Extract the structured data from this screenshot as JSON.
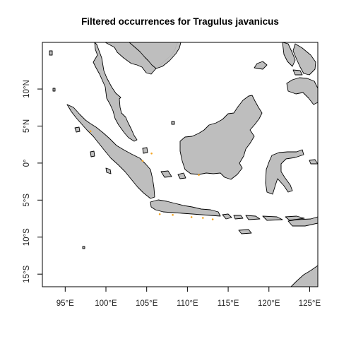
{
  "title": "Filtered occurrences for Tragulus javanicus",
  "map": {
    "lon_range": [
      92.2,
      126.0
    ],
    "lat_range": [
      -16.7,
      16.3
    ],
    "land_color": "#bebebe",
    "border_color": "#000000",
    "point_color": "#f5a623"
  },
  "x_ticks": [
    {
      "value": 95,
      "label": "95°E"
    },
    {
      "value": 100,
      "label": "100°E"
    },
    {
      "value": 105,
      "label": "105°E"
    },
    {
      "value": 110,
      "label": "110°E"
    },
    {
      "value": 115,
      "label": "115°E"
    },
    {
      "value": 120,
      "label": "120°E"
    },
    {
      "value": 125,
      "label": "125°E"
    }
  ],
  "y_ticks": [
    {
      "value": 10,
      "label": "10°N"
    },
    {
      "value": 5,
      "label": "5°N"
    },
    {
      "value": 0,
      "label": "0°"
    },
    {
      "value": -5,
      "label": "5°S"
    },
    {
      "value": -10,
      "label": "10°S"
    },
    {
      "value": -15,
      "label": "15°S"
    }
  ],
  "chart_data": {
    "type": "scatter",
    "title": "Filtered occurrences for Tragulus javanicus",
    "xlabel": "",
    "ylabel": "",
    "xlim": [
      92.2,
      126.0
    ],
    "ylim": [
      -16.7,
      16.3
    ],
    "grid": false,
    "series": [
      {
        "x": [
          98.1,
          104.5,
          105.6,
          106.6,
          108.2,
          110.5,
          111.4,
          111.9,
          113.1
        ],
        "y": [
          4.3,
          0.3,
          1.3,
          -6.9,
          -7.0,
          -7.3,
          -1.6,
          -7.4,
          -7.6
        ]
      }
    ]
  }
}
